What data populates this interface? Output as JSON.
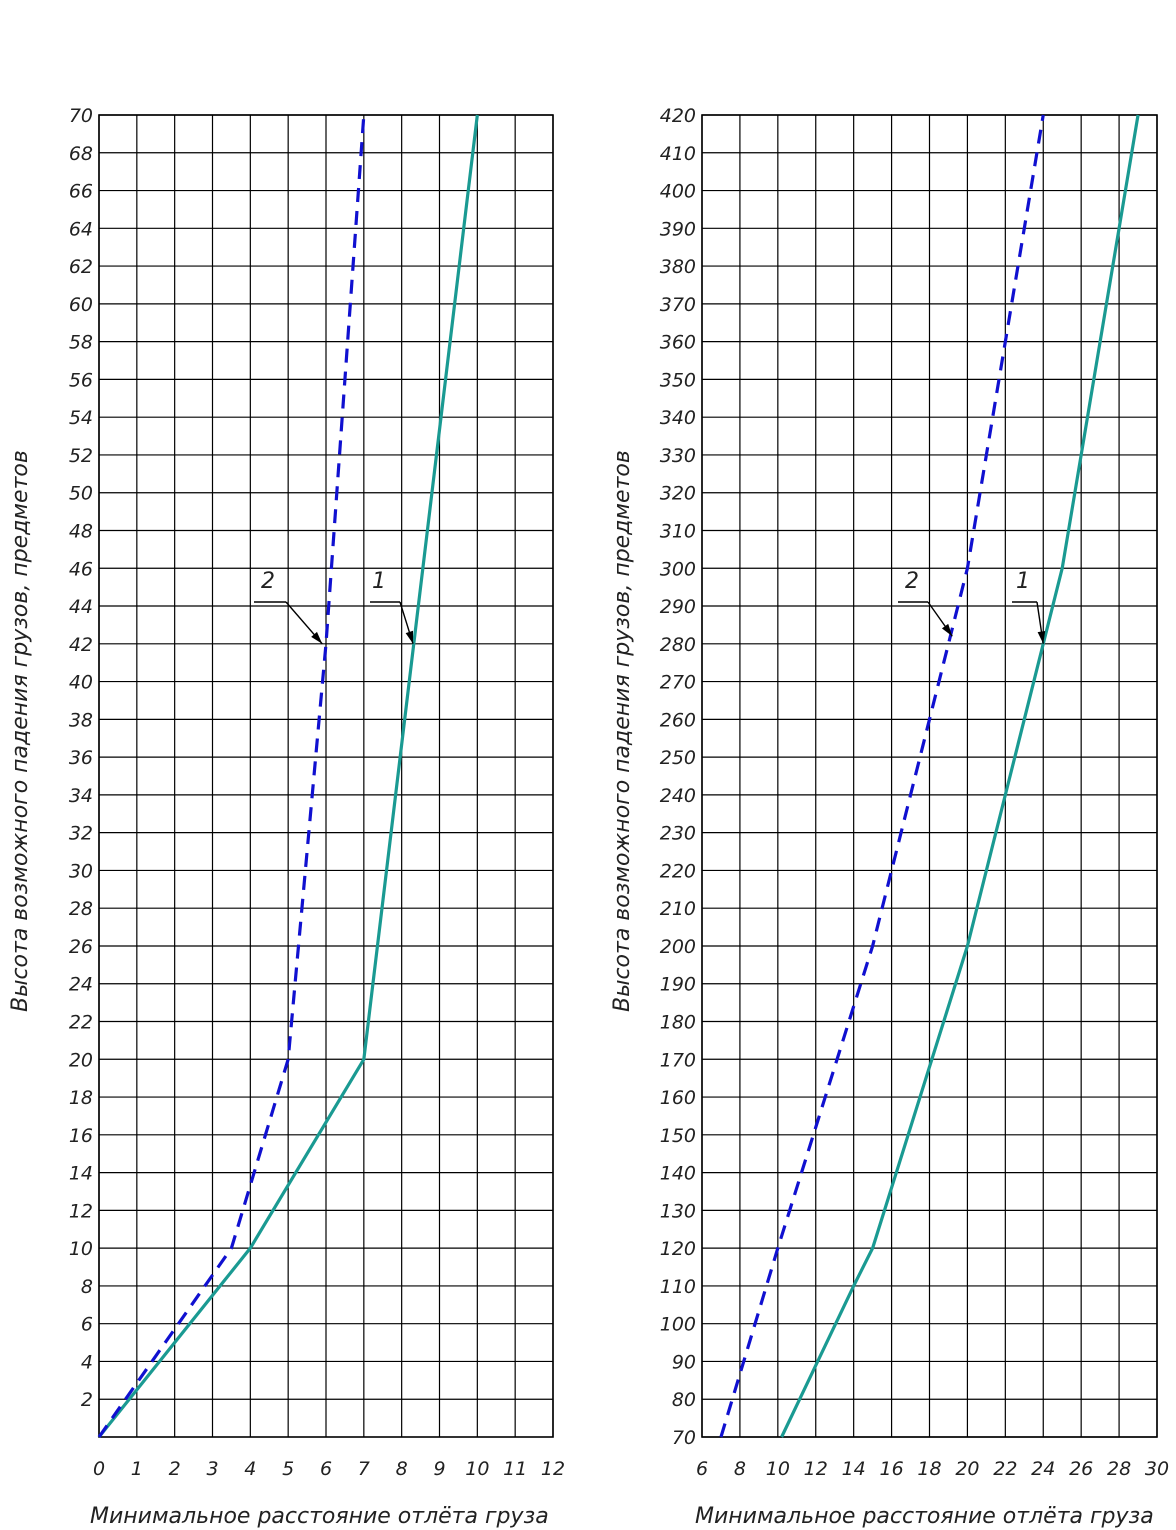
{
  "chart_data": [
    {
      "type": "line",
      "xlabel": "Минимальное расстояние отлёта груза",
      "ylabel": "Высота возможного падения грузов, предметов",
      "xlim": [
        0,
        12
      ],
      "ylim": [
        0,
        70
      ],
      "xticks": [
        "0",
        "1",
        "2",
        "3",
        "4",
        "5",
        "6",
        "7",
        "8",
        "9",
        "10",
        "11",
        "12"
      ],
      "yticks": [
        "2",
        "4",
        "6",
        "8",
        "10",
        "12",
        "14",
        "16",
        "18",
        "20",
        "22",
        "24",
        "26",
        "28",
        "30",
        "32",
        "34",
        "36",
        "38",
        "40",
        "42",
        "44",
        "46",
        "48",
        "50",
        "52",
        "54",
        "56",
        "58",
        "60",
        "62",
        "64",
        "66",
        "68",
        "70"
      ],
      "grid": true,
      "series": [
        {
          "name": "1",
          "style": "solid",
          "color": "#1a9a92",
          "x": [
            0,
            4,
            7,
            10
          ],
          "y": [
            0,
            10,
            20,
            70
          ],
          "callout": {
            "x": 8.3,
            "y": 42
          }
        },
        {
          "name": "2",
          "style": "dashed",
          "color": "#1010d0",
          "x": [
            0,
            3.5,
            5,
            6,
            7
          ],
          "y": [
            0,
            10,
            20,
            42,
            70
          ],
          "callout": {
            "x": 5.9,
            "y": 42
          }
        }
      ]
    },
    {
      "type": "line",
      "xlabel": "Минимальное расстояние отлёта груза",
      "ylabel": "Высота возможного падения грузов, предметов",
      "xlim": [
        6,
        30
      ],
      "ylim": [
        70,
        420
      ],
      "xticks": [
        "6",
        "8",
        "10",
        "12",
        "14",
        "16",
        "18",
        "20",
        "22",
        "24",
        "26",
        "28",
        "30"
      ],
      "yticks": [
        "70",
        "80",
        "90",
        "100",
        "110",
        "120",
        "130",
        "140",
        "150",
        "160",
        "170",
        "180",
        "190",
        "200",
        "210",
        "220",
        "230",
        "240",
        "250",
        "260",
        "270",
        "280",
        "290",
        "300",
        "310",
        "320",
        "330",
        "340",
        "350",
        "360",
        "370",
        "380",
        "390",
        "400",
        "410",
        "420"
      ],
      "grid": true,
      "series": [
        {
          "name": "1",
          "style": "solid",
          "color": "#1a9a92",
          "x": [
            10.2,
            14,
            15,
            20,
            25,
            29
          ],
          "y": [
            70,
            110,
            120,
            200,
            300,
            420
          ],
          "callout": {
            "x": 24,
            "y": 280
          }
        },
        {
          "name": "2",
          "style": "dashed",
          "color": "#1010d0",
          "x": [
            7,
            10,
            15,
            20,
            24
          ],
          "y": [
            70,
            120,
            200,
            300,
            420
          ],
          "callout": {
            "x": 19.2,
            "y": 282
          }
        }
      ]
    }
  ]
}
